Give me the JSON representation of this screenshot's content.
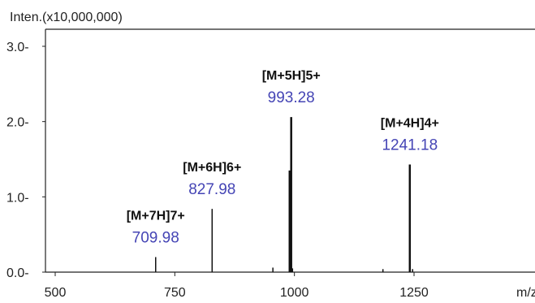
{
  "chart_data": {
    "type": "bar",
    "title": "",
    "ylabel": "Inten.(x10,000,000)",
    "xlabel": "m/z",
    "xlim": [
      480,
      1340
    ],
    "ylim": [
      0,
      3.2
    ],
    "xticks": [
      500,
      750,
      1000,
      1250
    ],
    "xtick_labels": [
      "500",
      "750",
      "1000",
      "1250"
    ],
    "yticks": [
      0,
      1,
      2,
      3
    ],
    "ytick_labels": [
      "0.0-",
      "1.0-",
      "2.0-",
      "3.0-"
    ],
    "grid": false,
    "peaks": [
      {
        "mz": 709.98,
        "intensity": 0.2,
        "ion": "[M+7H]7+",
        "mz_label": "709.98",
        "labeled": true
      },
      {
        "mz": 827.98,
        "intensity": 0.84,
        "ion": "[M+6H]6+",
        "mz_label": "827.98",
        "labeled": true
      },
      {
        "mz": 955.0,
        "intensity": 0.06,
        "labeled": false
      },
      {
        "mz": 990.0,
        "intensity": 1.35,
        "labeled": false
      },
      {
        "mz": 993.28,
        "intensity": 2.06,
        "ion": "[M+5H]5+",
        "mz_label": "993.28",
        "labeled": true
      },
      {
        "mz": 996.0,
        "intensity": 0.05,
        "labeled": false
      },
      {
        "mz": 1185.0,
        "intensity": 0.04,
        "labeled": false
      },
      {
        "mz": 1241.18,
        "intensity": 1.43,
        "ion": "[M+4H]4+",
        "mz_label": "1241.18",
        "labeled": true
      },
      {
        "mz": 1247.0,
        "intensity": 0.04,
        "labeled": false
      }
    ],
    "colors": {
      "peak": "#111111",
      "mz_label": "#4545b5",
      "axis": "#222222"
    }
  }
}
